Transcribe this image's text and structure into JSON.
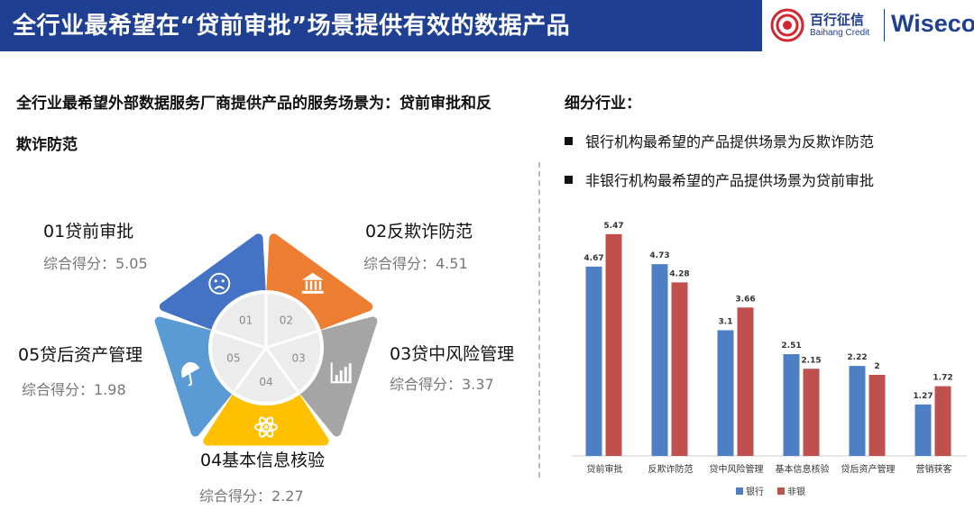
{
  "header": {
    "title": "全行业最希望在“贷前审批”场景提供有效的数据产品",
    "brand_cn": "百行征信",
    "brand_en": "Baihang Credit",
    "brand_wiseco": "Wiseco"
  },
  "left": {
    "line1": "全行业最希望外部数据服务厂商提供产品的服务场景为：贷前审批和反",
    "line2": "欺诈防范"
  },
  "segments": [
    {
      "num": "01",
      "title": "01贷前审批",
      "score": "综合得分：5.05",
      "color": "#4472c4",
      "icon": "worried-face-icon"
    },
    {
      "num": "02",
      "title": "02反欺诈防范",
      "score": "综合得分：4.51",
      "color": "#ed7d31",
      "icon": "bank-icon"
    },
    {
      "num": "03",
      "title": "03贷中风险管理",
      "score": "综合得分：3.37",
      "color": "#a5a5a5",
      "icon": "bar-chart-icon"
    },
    {
      "num": "04",
      "title": "04基本信息核验",
      "score": "综合得分：2.27",
      "color": "#ffc000",
      "icon": "atom-icon"
    },
    {
      "num": "05",
      "title": "05贷后资产管理",
      "score": "综合得分：1.98",
      "color": "#5b9bd5",
      "icon": "umbrella-icon"
    }
  ],
  "right": {
    "heading": "细分行业：",
    "bullets": [
      "银行机构最希望的产品提供场景为反欺诈防范",
      "非银行机构最希望的产品提供场景为贷前审批"
    ]
  },
  "chart_data": {
    "type": "bar",
    "categories": [
      "贷前审批",
      "反欺诈防范",
      "贷中风险管理",
      "基本信息核验",
      "贷后资产管理",
      "营销获客"
    ],
    "series": [
      {
        "name": "银行",
        "values": [
          4.67,
          4.73,
          3.1,
          2.51,
          2.22,
          1.27
        ],
        "labels": [
          "4.67",
          "4.73",
          "3.1",
          "2.51",
          "2.22",
          "1.27"
        ],
        "color": "#4e7fc4"
      },
      {
        "name": "非银",
        "values": [
          5.47,
          4.28,
          3.66,
          2.15,
          2,
          1.72
        ],
        "labels": [
          "5.47",
          "4.28",
          "3.66",
          "2.15",
          "2",
          "1.72"
        ],
        "color": "#c0504d"
      }
    ],
    "ylim": [
      0,
      6
    ],
    "legend_position": "bottom",
    "grid": false
  }
}
